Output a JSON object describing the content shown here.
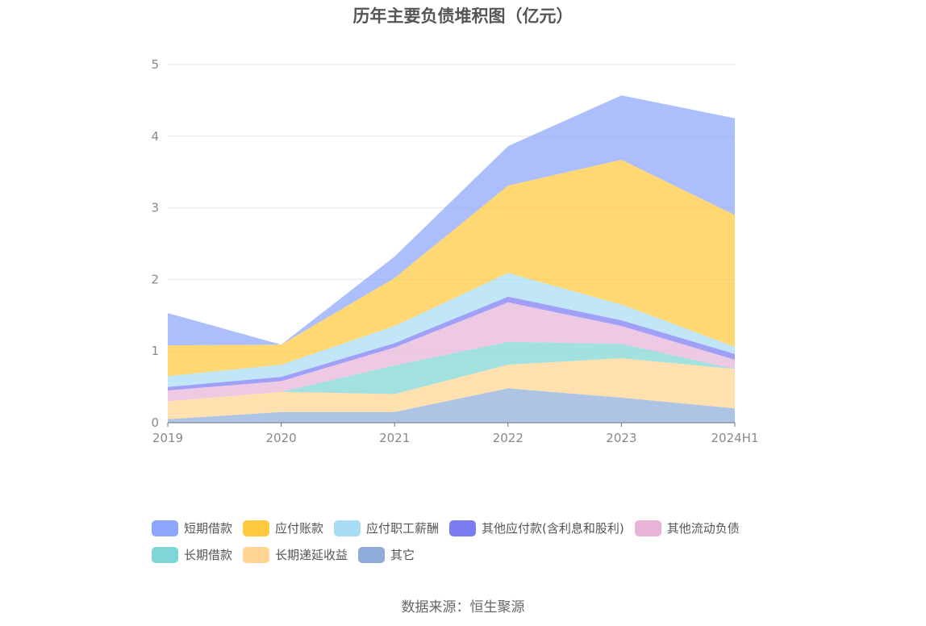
{
  "title": "历年主要负债堆积图（亿元）",
  "source": "数据来源：恒生聚源",
  "chart_data": {
    "type": "area",
    "stacked": true,
    "title": "历年主要负债堆积图（亿元）",
    "xlabel": "",
    "ylabel": "",
    "ylim": [
      0,
      5
    ],
    "yticks": [
      "0",
      "1",
      "2",
      "3",
      "4",
      "5"
    ],
    "categories": [
      "2019",
      "2020",
      "2021",
      "2022",
      "2023",
      "2024H1"
    ],
    "grid": true,
    "legend_position": "bottom",
    "series": [
      {
        "name": "其它",
        "color": "#8eaddb",
        "values": [
          0.05,
          0.15,
          0.15,
          0.48,
          0.35,
          0.2
        ]
      },
      {
        "name": "长期递延收益",
        "color": "#ffd591",
        "values": [
          0.25,
          0.28,
          0.25,
          0.33,
          0.55,
          0.55
        ]
      },
      {
        "name": "长期借款",
        "color": "#80d6d6",
        "values": [
          0.0,
          0.0,
          0.4,
          0.32,
          0.2,
          0.0
        ]
      },
      {
        "name": "其他流动负债",
        "color": "#e8b4d8",
        "values": [
          0.15,
          0.15,
          0.25,
          0.55,
          0.25,
          0.13
        ]
      },
      {
        "name": "其他应付款(含利息和股利)",
        "color": "#7b7cf2",
        "values": [
          0.05,
          0.06,
          0.06,
          0.08,
          0.08,
          0.08
        ]
      },
      {
        "name": "应付职工薪酬",
        "color": "#a8dcf5",
        "values": [
          0.15,
          0.17,
          0.24,
          0.33,
          0.22,
          0.1
        ]
      },
      {
        "name": "应付账款",
        "color": "#ffc83d",
        "values": [
          0.43,
          0.28,
          0.67,
          1.22,
          2.02,
          1.84
        ]
      },
      {
        "name": "短期借款",
        "color": "#8ca6fb",
        "values": [
          0.45,
          0.0,
          0.3,
          0.55,
          0.9,
          1.35
        ]
      }
    ]
  },
  "legend_rows": [
    [
      "短期借款",
      "应付账款",
      "应付职工薪酬",
      "其他应付款(含利息和股利)",
      "其他流动负债"
    ],
    [
      "长期借款",
      "长期递延收益",
      "其它"
    ]
  ]
}
